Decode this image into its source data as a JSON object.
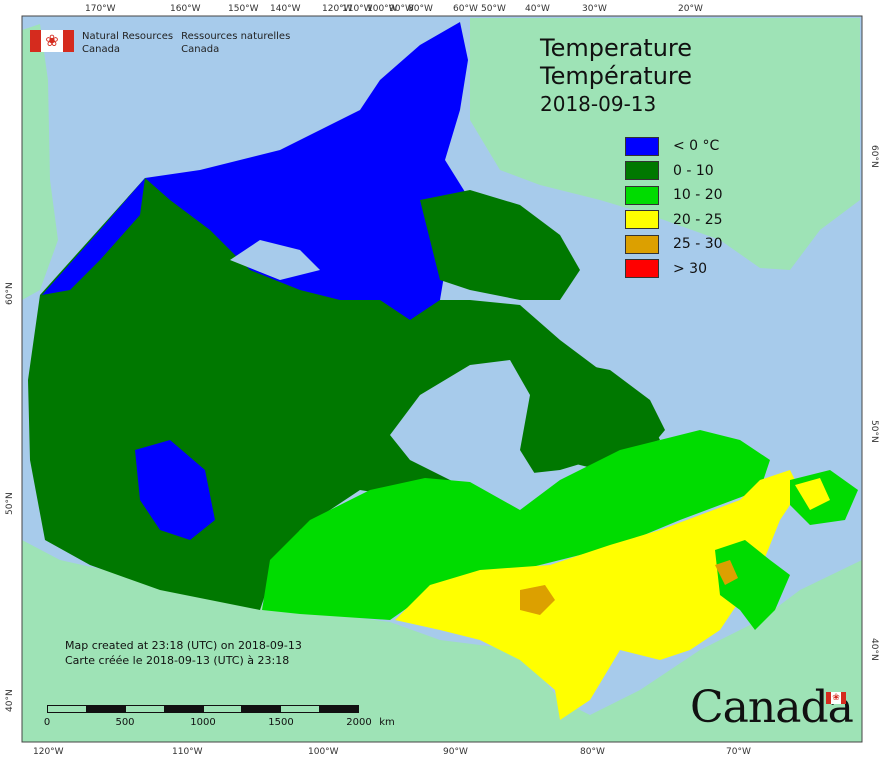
{
  "header": {
    "title_en": "Temperature",
    "title_fr": "Température",
    "date": "2018-09-13",
    "department_en_line1": "Natural Resources",
    "department_en_line2": "Canada",
    "department_fr_line1": "Ressources naturelles",
    "department_fr_line2": "Canada"
  },
  "legend": {
    "items": [
      {
        "label": "< 0 °C",
        "color": "#0000ff"
      },
      {
        "label": "0 - 10",
        "color": "#007800"
      },
      {
        "label": "10 - 20",
        "color": "#00dc00"
      },
      {
        "label": "20 - 25",
        "color": "#ffff00"
      },
      {
        "label": "25 - 30",
        "color": "#dca000"
      },
      {
        "label": "> 30",
        "color": "#ff0000"
      }
    ]
  },
  "footer": {
    "created_en": "Map created at 23:18 (UTC) on 2018-09-13",
    "created_fr": "Carte créée le 2018-09-13 (UTC) à 23:18",
    "wordmark": "Canada"
  },
  "scale_bar": {
    "labels": [
      "0",
      "500",
      "1000",
      "1500",
      "2000",
      "km"
    ]
  },
  "graticule": {
    "top_labels": [
      "170°W",
      "160°W",
      "150°W",
      "140°W",
      "120°W",
      "110°W",
      "100°W",
      "90°W",
      "80°W",
      "60°W",
      "50°W",
      "40°W",
      "30°W",
      "20°W"
    ],
    "bottom_labels": [
      "120°W",
      "110°W",
      "100°W",
      "90°W",
      "80°W",
      "70°W"
    ],
    "left_labels": [
      "60°N",
      "50°N",
      "40°N"
    ],
    "right_labels": [
      "60°N",
      "50°N",
      "40°N"
    ]
  },
  "colors": {
    "ocean": "#a7cbeb",
    "foreign_land": "#9ee3b6",
    "frame": "#444444"
  }
}
